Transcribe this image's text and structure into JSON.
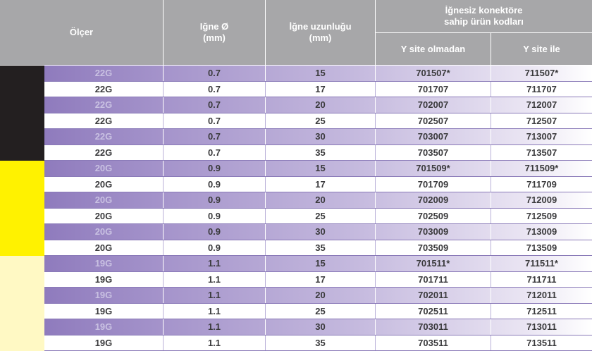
{
  "table": {
    "headers": {
      "olcer": "Ölçer",
      "igne_cap": "Iğne Ø\n(mm)",
      "igne_uzunlugu": "İğne uzunluğu\n(mm)",
      "konektor_group": "İğnesiz konektöre\nsahip ürün kodları",
      "y_site_olmadan": "Y site olmadan",
      "y_site_ile": "Y site ile"
    },
    "groups": [
      {
        "color": "#231f20",
        "rows": 6
      },
      {
        "color": "#fff200",
        "rows": 6
      },
      {
        "color": "#fff9c4",
        "rows": 6
      }
    ],
    "rows": [
      [
        "22G",
        "0.7",
        "15",
        "701507*",
        "711507*"
      ],
      [
        "22G",
        "0.7",
        "17",
        "701707",
        "711707"
      ],
      [
        "22G",
        "0.7",
        "20",
        "702007",
        "712007"
      ],
      [
        "22G",
        "0.7",
        "25",
        "702507",
        "712507"
      ],
      [
        "22G",
        "0.7",
        "30",
        "703007",
        "713007"
      ],
      [
        "22G",
        "0.7",
        "35",
        "703507",
        "713507"
      ],
      [
        "20G",
        "0.9",
        "15",
        "701509*",
        "711509*"
      ],
      [
        "20G",
        "0.9",
        "17",
        "701709",
        "711709"
      ],
      [
        "20G",
        "0.9",
        "20",
        "702009",
        "712009"
      ],
      [
        "20G",
        "0.9",
        "25",
        "702509",
        "712509"
      ],
      [
        "20G",
        "0.9",
        "30",
        "703009",
        "713009"
      ],
      [
        "20G",
        "0.9",
        "35",
        "703509",
        "713509"
      ],
      [
        "19G",
        "1.1",
        "15",
        "701511*",
        "711511*"
      ],
      [
        "19G",
        "1.1",
        "17",
        "701711",
        "711711"
      ],
      [
        "19G",
        "1.1",
        "20",
        "702011",
        "712011"
      ],
      [
        "19G",
        "1.1",
        "25",
        "702511",
        "712511"
      ],
      [
        "19G",
        "1.1",
        "30",
        "703011",
        "713011"
      ],
      [
        "19G",
        "1.1",
        "35",
        "703511",
        "713511"
      ]
    ]
  }
}
